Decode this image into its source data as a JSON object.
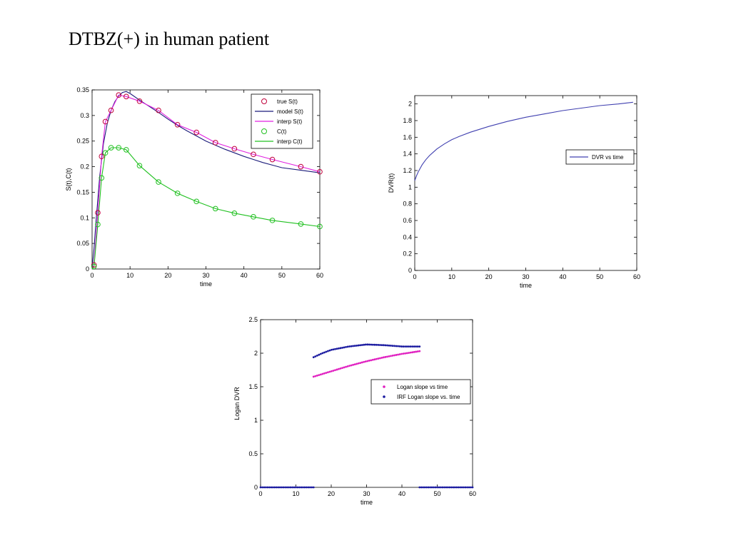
{
  "page": {
    "title": "DTBZ(+) in human patient"
  },
  "chart_data": [
    {
      "type": "line",
      "xlabel": "time",
      "ylabel": "S(t),C(t)",
      "xlim": [
        0,
        60
      ],
      "ylim": [
        0,
        0.35
      ],
      "xticks": [
        0,
        10,
        20,
        30,
        40,
        50,
        60
      ],
      "yticks": [
        0,
        0.05,
        0.1,
        0.15,
        0.2,
        0.25,
        0.3,
        0.35
      ],
      "legend_position": "top-right",
      "series": [
        {
          "name": "true S(t)",
          "style": "markers",
          "marker": "circle",
          "color": "#c0003a",
          "x": [
            0.5,
            1.5,
            2.5,
            3.5,
            5,
            7,
            9,
            12.5,
            17.5,
            22.5,
            27.5,
            32.5,
            37.5,
            42.5,
            47.5,
            55,
            60
          ],
          "y": [
            0.008,
            0.11,
            0.22,
            0.288,
            0.31,
            0.34,
            0.337,
            0.328,
            0.31,
            0.282,
            0.267,
            0.247,
            0.235,
            0.224,
            0.214,
            0.2,
            0.19
          ]
        },
        {
          "name": "model S(t)",
          "style": "line",
          "color": "#1a1a7a",
          "x": [
            0,
            0.5,
            1,
            1.5,
            2,
            3,
            4,
            5,
            6,
            7,
            8,
            9,
            10,
            12.5,
            15,
            17.5,
            20,
            22.5,
            25,
            27.5,
            30,
            32.5,
            35,
            37.5,
            40,
            42.5,
            45,
            47.5,
            50,
            55,
            60
          ],
          "y": [
            0,
            0.04,
            0.09,
            0.135,
            0.18,
            0.245,
            0.285,
            0.31,
            0.327,
            0.338,
            0.345,
            0.347,
            0.343,
            0.33,
            0.318,
            0.306,
            0.293,
            0.281,
            0.27,
            0.26,
            0.25,
            0.242,
            0.234,
            0.227,
            0.22,
            0.214,
            0.208,
            0.203,
            0.198,
            0.193,
            0.188
          ]
        },
        {
          "name": "interp S(t)",
          "style": "line",
          "color": "#e020e0",
          "x": [
            0,
            0.5,
            1.5,
            2.5,
            3.5,
            5,
            7,
            9,
            12.5,
            17.5,
            22.5,
            27.5,
            32.5,
            37.5,
            42.5,
            47.5,
            55,
            60
          ],
          "y": [
            0,
            0.008,
            0.11,
            0.22,
            0.288,
            0.31,
            0.34,
            0.337,
            0.328,
            0.31,
            0.282,
            0.267,
            0.247,
            0.235,
            0.224,
            0.214,
            0.2,
            0.19
          ]
        },
        {
          "name": "C(t)",
          "style": "markers",
          "marker": "circle",
          "color": "#20c020",
          "x": [
            0.5,
            1.5,
            2.5,
            3.5,
            5,
            7,
            9,
            12.5,
            17.5,
            22.5,
            27.5,
            32.5,
            37.5,
            42.5,
            47.5,
            55,
            60
          ],
          "y": [
            0.005,
            0.087,
            0.178,
            0.227,
            0.237,
            0.237,
            0.233,
            0.202,
            0.17,
            0.148,
            0.132,
            0.118,
            0.109,
            0.102,
            0.095,
            0.088,
            0.083
          ]
        },
        {
          "name": "interp C(t)",
          "style": "line",
          "color": "#20c020",
          "x": [
            0,
            0.5,
            1.5,
            2.5,
            3.5,
            5,
            7,
            9,
            12.5,
            17.5,
            22.5,
            27.5,
            32.5,
            37.5,
            42.5,
            47.5,
            55,
            60
          ],
          "y": [
            0,
            0.005,
            0.087,
            0.178,
            0.227,
            0.237,
            0.237,
            0.233,
            0.202,
            0.17,
            0.148,
            0.132,
            0.118,
            0.109,
            0.102,
            0.095,
            0.088,
            0.083
          ]
        }
      ]
    },
    {
      "type": "line",
      "xlabel": "time",
      "ylabel": "DVR(t)",
      "xlim": [
        0,
        60
      ],
      "ylim": [
        0,
        2.1
      ],
      "xticks": [
        0,
        10,
        20,
        30,
        40,
        50,
        60
      ],
      "yticks": [
        0,
        0.2,
        0.4,
        0.6,
        0.8,
        1,
        1.2,
        1.4,
        1.6,
        1.8,
        2
      ],
      "legend_position": "right",
      "series": [
        {
          "name": "DVR vs time",
          "style": "line",
          "color": "#4040b0",
          "x": [
            0,
            0.5,
            1,
            1.5,
            2,
            3,
            4,
            5,
            6,
            8,
            10,
            12,
            15,
            20,
            25,
            30,
            35,
            40,
            45,
            50,
            55,
            59
          ],
          "y": [
            1.08,
            1.14,
            1.19,
            1.23,
            1.27,
            1.33,
            1.38,
            1.42,
            1.46,
            1.52,
            1.57,
            1.61,
            1.66,
            1.73,
            1.79,
            1.84,
            1.88,
            1.92,
            1.95,
            1.98,
            2.0,
            2.02
          ]
        }
      ]
    },
    {
      "type": "scatter",
      "xlabel": "time",
      "ylabel": "Logan DVR",
      "xlim": [
        0,
        60
      ],
      "ylim": [
        0,
        2.5
      ],
      "xticks": [
        0,
        10,
        20,
        30,
        40,
        50,
        60
      ],
      "yticks": [
        0,
        0.5,
        1,
        1.5,
        2,
        2.5
      ],
      "legend_position": "right",
      "series": [
        {
          "name": "Logan slope vs time",
          "color": "#e020c0",
          "x_start": 15,
          "x_end": 45,
          "points": 60,
          "curve_x": [
            15,
            20,
            25,
            30,
            35,
            40,
            45
          ],
          "curve_y": [
            1.65,
            1.73,
            1.81,
            1.88,
            1.94,
            1.99,
            2.03
          ]
        },
        {
          "name": "IRF Logan slope vs. time",
          "color": "#1a1aa0",
          "x_start": 15,
          "x_end": 45,
          "points": 60,
          "curve_x": [
            15,
            17.5,
            20,
            25,
            30,
            35,
            40,
            45
          ],
          "curve_y": [
            1.94,
            2.0,
            2.05,
            2.1,
            2.13,
            2.12,
            2.1,
            2.1
          ],
          "zero_ranges": [
            [
              0,
              15
            ],
            [
              45,
              60
            ]
          ]
        }
      ]
    }
  ]
}
